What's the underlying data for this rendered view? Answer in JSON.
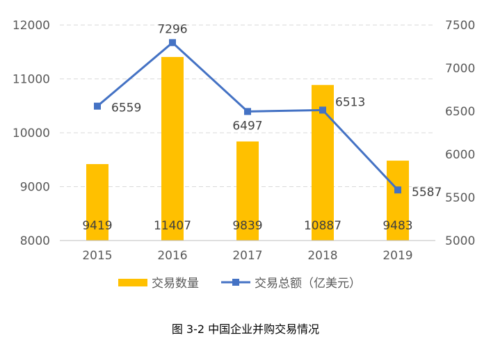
{
  "chart_data": {
    "type": "bar",
    "categories": [
      "2015",
      "2016",
      "2017",
      "2018",
      "2019"
    ],
    "series": [
      {
        "name": "交易数量",
        "kind": "bar",
        "axis": "left",
        "color": "#FFC000",
        "values": [
          9419,
          11407,
          9839,
          10887,
          9483
        ],
        "labels": [
          "9419",
          "11407",
          "9839",
          "10887",
          "9483"
        ]
      },
      {
        "name": "交易总额（亿美元）",
        "kind": "line",
        "axis": "right",
        "color": "#4472C4",
        "values": [
          6559,
          7296,
          6497,
          6513,
          5587
        ],
        "labels": [
          "6559",
          "7296",
          "6497",
          "6513",
          "5587"
        ]
      }
    ],
    "y_left": {
      "lim": [
        8000,
        12000
      ],
      "ticks": [
        "8000",
        "9000",
        "10000",
        "11000",
        "12000"
      ]
    },
    "y_right": {
      "lim": [
        5000,
        7500
      ],
      "ticks": [
        "5000",
        "5500",
        "6000",
        "6500",
        "7000",
        "7500"
      ]
    },
    "grid": true,
    "legend": "bottom"
  },
  "caption": "图 3-2 中国企业并购交易情况"
}
